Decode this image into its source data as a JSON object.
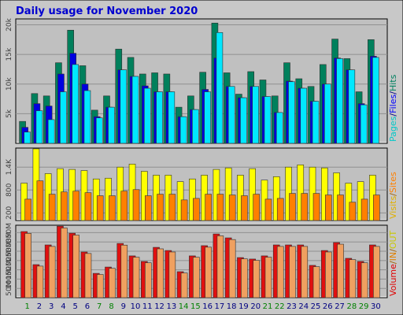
{
  "chart_data": [
    {
      "type": "bar",
      "title": "Daily usage for November 2020",
      "ylim": [
        0,
        21000
      ],
      "yticks": [
        {
          "value": 5000,
          "label": "5k"
        },
        {
          "value": 10000,
          "label": "10k"
        },
        {
          "value": 15000,
          "label": "15k"
        },
        {
          "value": 20000,
          "label": "20k"
        }
      ],
      "legend": [
        {
          "text": "Pages",
          "color": "#00c8c8"
        },
        {
          "text": "/",
          "color": "#000080"
        },
        {
          "text": "Files",
          "color": "#0000ff"
        },
        {
          "text": "/",
          "color": "#000080"
        },
        {
          "text": "Hits",
          "color": "#008060"
        }
      ],
      "series": [
        {
          "color": "#00805c",
          "values": [
            3700,
            8400,
            8000,
            13600,
            19100,
            13100,
            5600,
            8000,
            15900,
            14500,
            11700,
            11900,
            11700,
            6100,
            8000,
            12000,
            20300,
            11900,
            8300,
            12100,
            10700,
            8000,
            13600,
            10900,
            9600,
            13300,
            17600,
            14300,
            8700,
            17500
          ]
        },
        {
          "color": "#0000e0",
          "values": [
            2700,
            6700,
            6300,
            11700,
            15200,
            10000,
            4500,
            6100,
            12400,
            11300,
            9700,
            8700,
            8700,
            4500,
            5700,
            9100,
            14400,
            9600,
            7700,
            9600,
            7900,
            5200,
            10500,
            9300,
            7100,
            10000,
            14400,
            12400,
            6700,
            14700
          ]
        },
        {
          "color": "#00e8ff",
          "values": [
            1900,
            5500,
            4000,
            8700,
            13300,
            8900,
            4300,
            6100,
            12400,
            11300,
            9300,
            8700,
            8700,
            4500,
            5700,
            8700,
            18700,
            9600,
            7700,
            9600,
            7900,
            5200,
            10400,
            9300,
            7100,
            10000,
            14300,
            12400,
            6500,
            14500
          ]
        }
      ]
    },
    {
      "type": "bar",
      "ylim": [
        0,
        1900
      ],
      "yticks": [
        200,
        800,
        {
          "value": 1400,
          "label": "1.4K"
        }
      ],
      "legend": [
        {
          "text": "Visits",
          "color": "#e0b000"
        },
        {
          "text": "/",
          "color": "#a06000"
        },
        {
          "text": "Sites",
          "color": "#ff8000"
        }
      ],
      "series": [
        {
          "color": "#ffff00",
          "values": [
            980,
            1880,
            1230,
            1360,
            1340,
            1310,
            1090,
            1110,
            1400,
            1480,
            1290,
            1190,
            1190,
            1020,
            1090,
            1190,
            1340,
            1380,
            1190,
            1360,
            1060,
            1150,
            1400,
            1460,
            1400,
            1380,
            1250,
            980,
            1020,
            1190
          ]
        },
        {
          "color": "#ff8000",
          "values": [
            560,
            1040,
            690,
            750,
            770,
            730,
            650,
            650,
            770,
            810,
            650,
            690,
            690,
            540,
            580,
            690,
            690,
            670,
            650,
            690,
            560,
            580,
            710,
            710,
            710,
            670,
            670,
            480,
            560,
            670
          ]
        }
      ]
    },
    {
      "type": "bar",
      "ylim": [
        0,
        390
      ],
      "yticks": [
        {
          "value": 50,
          "label": "50M"
        },
        {
          "value": 100,
          "label": "100M"
        },
        {
          "value": 150,
          "label": "150M"
        },
        {
          "value": 200,
          "label": "200M"
        },
        {
          "value": 250,
          "label": "250M"
        },
        {
          "value": 300,
          "label": "300M"
        },
        {
          "value": 350,
          "label": "350M"
        }
      ],
      "legend": [
        {
          "text": "Volume",
          "color": "#e00000"
        },
        {
          "text": "/",
          "color": "#a06000"
        },
        {
          "text": "IN",
          "color": "#e08000"
        },
        {
          "text": "/",
          "color": "#a06000"
        },
        {
          "text": "OUT",
          "color": "#c8c800"
        }
      ],
      "categories": [
        "1",
        "2",
        "3",
        "4",
        "5",
        "6",
        "7",
        "8",
        "9",
        "10",
        "11",
        "12",
        "13",
        "14",
        "15",
        "16",
        "17",
        "18",
        "19",
        "20",
        "21",
        "22",
        "23",
        "24",
        "25",
        "26",
        "27",
        "28",
        "29",
        "30"
      ],
      "category_colors": [
        "#008000",
        "#000080",
        "#000080",
        "#000080",
        "#000080",
        "#000080",
        "#008000",
        "#008000",
        "#000080",
        "#000080",
        "#000080",
        "#000080",
        "#000080",
        "#008000",
        "#008000",
        "#000080",
        "#000080",
        "#000080",
        "#000080",
        "#000080",
        "#008000",
        "#008000",
        "#000080",
        "#000080",
        "#000080",
        "#000080",
        "#000080",
        "#008000",
        "#008000",
        "#000080"
      ],
      "series": [
        {
          "color": "#e01010",
          "values": [
            356,
            178,
            284,
            385,
            347,
            246,
            131,
            165,
            292,
            225,
            195,
            271,
            254,
            140,
            225,
            280,
            343,
            322,
            216,
            208,
            225,
            284,
            284,
            284,
            174,
            254,
            297,
            212,
            195,
            284
          ]
        },
        {
          "color": "#f0a060",
          "values": [
            346,
            170,
            276,
            375,
            337,
            238,
            125,
            158,
            283,
            218,
            188,
            263,
            246,
            133,
            218,
            272,
            333,
            313,
            209,
            201,
            218,
            276,
            276,
            276,
            167,
            246,
            288,
            205,
            188,
            276
          ]
        }
      ]
    }
  ]
}
